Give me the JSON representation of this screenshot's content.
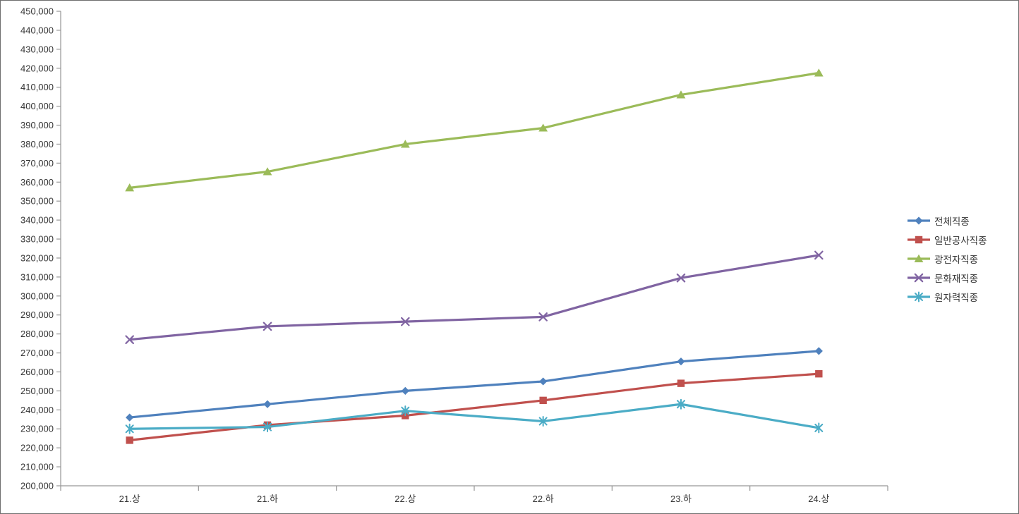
{
  "chart_data": {
    "type": "line",
    "title": "",
    "xlabel": "",
    "ylabel": "",
    "categories": [
      "21.상",
      "21.하",
      "22.상",
      "22.하",
      "23.하",
      "24.상"
    ],
    "series": [
      {
        "name": "전체직종",
        "color": "#4F81BD",
        "marker": "diamond",
        "values": [
          236000,
          243000,
          250000,
          255000,
          265500,
          271000
        ]
      },
      {
        "name": "일반공사직종",
        "color": "#C0504D",
        "marker": "square",
        "values": [
          224000,
          232000,
          237000,
          245000,
          254000,
          259000
        ]
      },
      {
        "name": "광전자직종",
        "color": "#9BBB59",
        "marker": "triangle",
        "values": [
          357000,
          365500,
          380000,
          388500,
          406000,
          417500
        ]
      },
      {
        "name": "문화재직종",
        "color": "#8064A2",
        "marker": "x",
        "values": [
          277000,
          284000,
          286500,
          289000,
          309500,
          321500
        ]
      },
      {
        "name": "원자력직종",
        "color": "#4BACC6",
        "marker": "asterisk",
        "values": [
          230000,
          231000,
          239500,
          234000,
          243000,
          230500
        ]
      }
    ],
    "ylim": [
      200000,
      450000
    ],
    "ytick_step": 10000,
    "ytick_format": "comma",
    "grid": false,
    "legend_position": "right",
    "axis_color": "#969696",
    "tick_text_color": "#333333"
  }
}
